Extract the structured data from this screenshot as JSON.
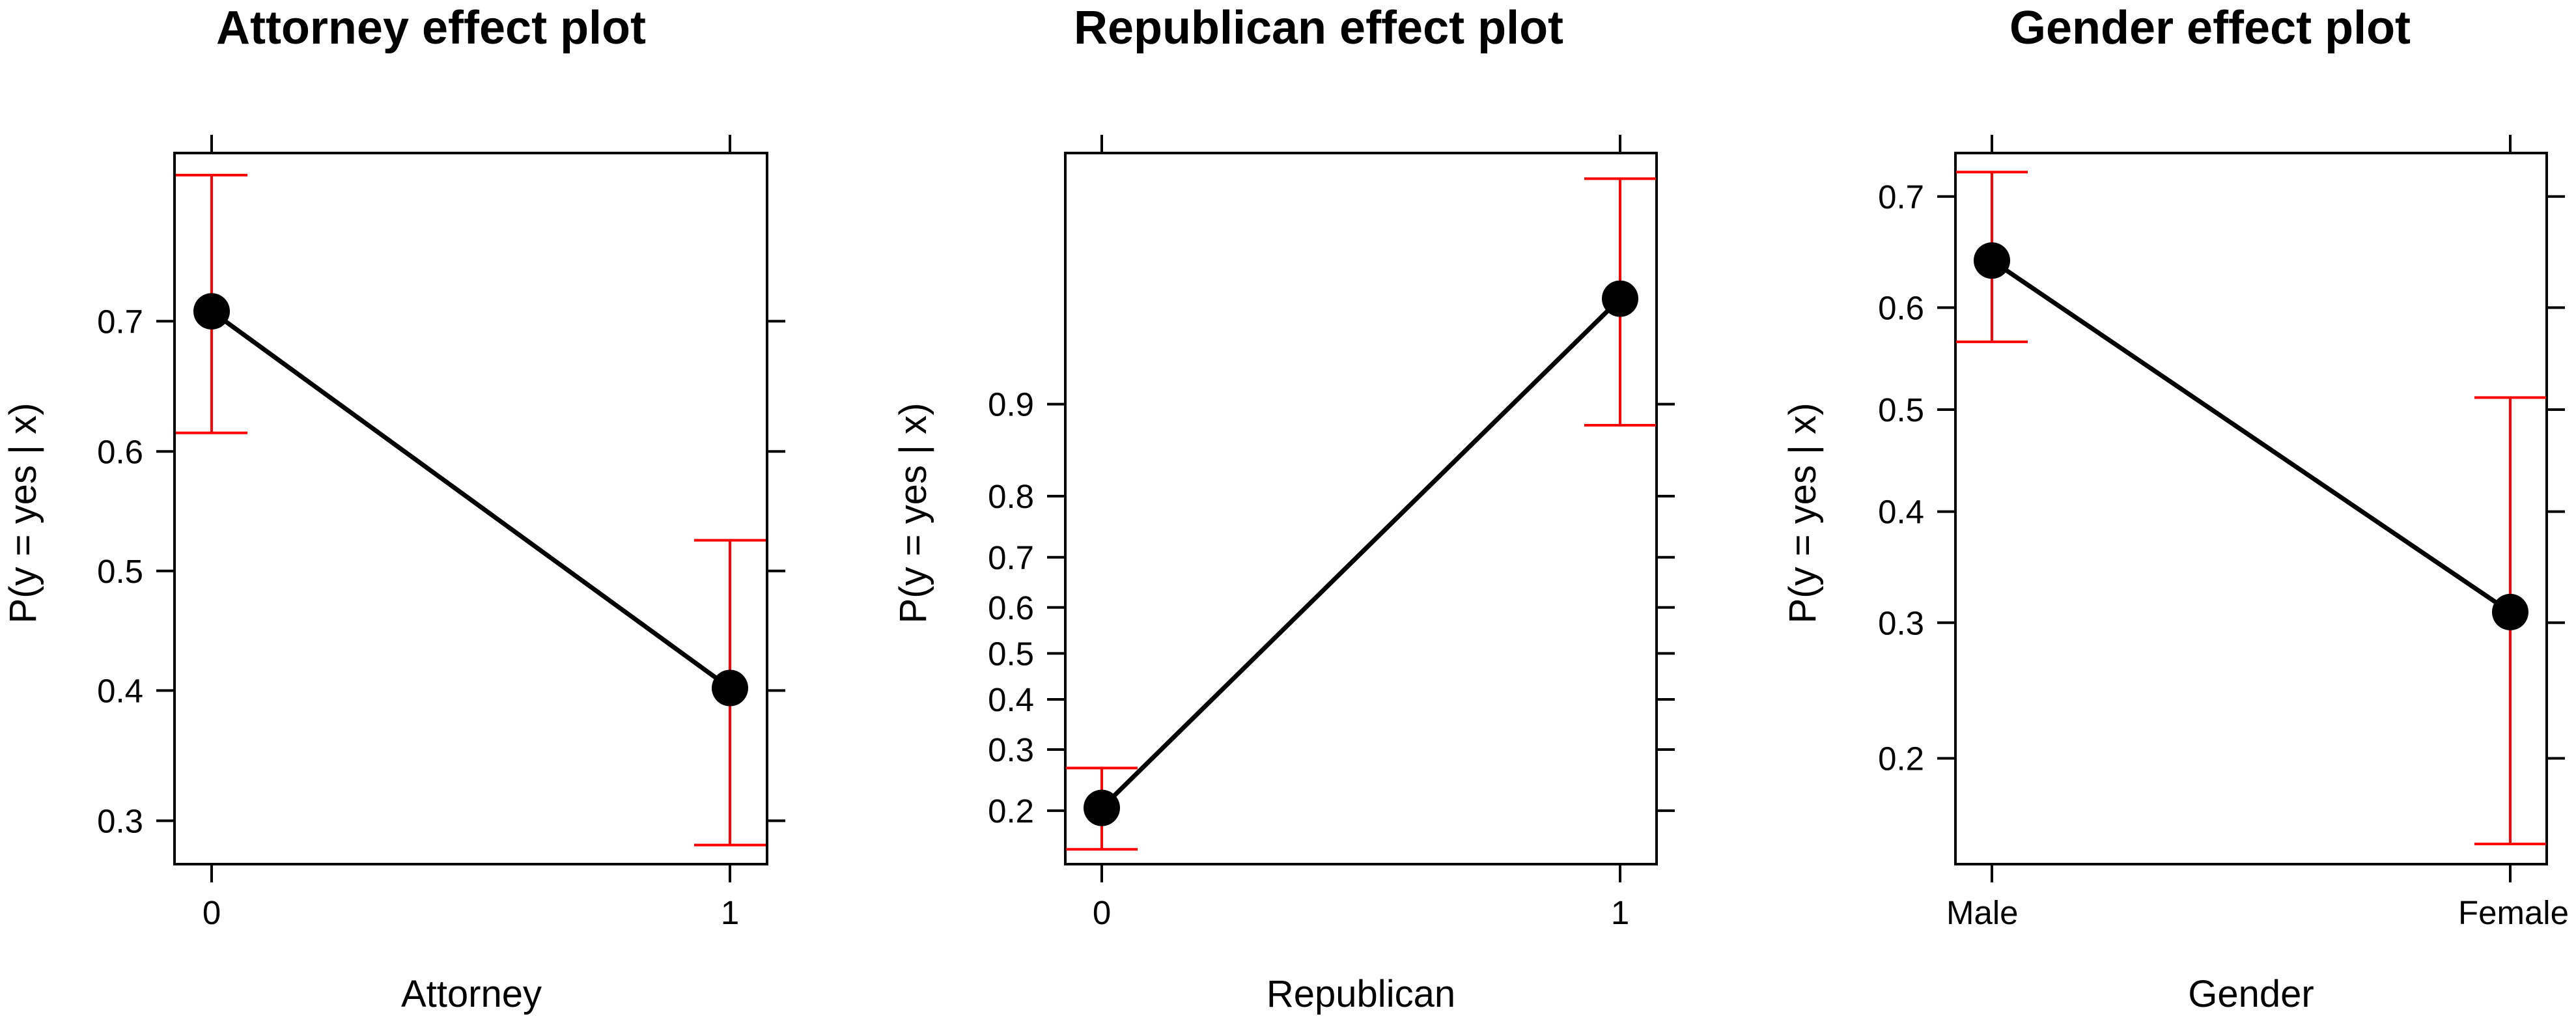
{
  "chart_data": [
    {
      "type": "line",
      "title": "Attorney effect plot",
      "xlabel": "Attorney",
      "ylabel": "P(y = yes | x)",
      "categories": [
        "0",
        "1"
      ],
      "values": [
        0.707,
        0.402
      ],
      "ci_lower": [
        0.615,
        0.283
      ],
      "ci_upper": [
        0.793,
        0.526
      ],
      "yticks": [
        0.3,
        0.4,
        0.5,
        0.6,
        0.7
      ],
      "ytick_labels": [
        "0.3",
        "0.4",
        "0.5",
        "0.6",
        "0.7"
      ],
      "yscale": "logit",
      "ylim": [
        0.27,
        0.805
      ],
      "grid": false,
      "point_color": "#000000",
      "line_color": "#000000",
      "ci_color": "#ff0000"
    },
    {
      "type": "line",
      "title": "Republican effect plot",
      "xlabel": "Republican",
      "ylabel": "P(y = yes | x)",
      "categories": [
        "0",
        "1"
      ],
      "values": [
        0.204,
        0.958
      ],
      "ci_lower": [
        0.151,
        0.882
      ],
      "ci_upper": [
        0.267,
        0.985
      ],
      "yticks": [
        0.2,
        0.3,
        0.4,
        0.5,
        0.6,
        0.7,
        0.8,
        0.9
      ],
      "ytick_labels": [
        "0.2",
        "0.3",
        "0.4",
        "0.5",
        "0.6",
        "0.7",
        "0.8",
        "0.9"
      ],
      "yscale": "logit",
      "ylim": [
        0.135,
        0.988
      ],
      "grid": false,
      "point_color": "#000000",
      "line_color": "#000000",
      "ci_color": "#ff0000"
    },
    {
      "type": "line",
      "title": "Gender effect plot",
      "xlabel": "Gender",
      "ylabel": "P(y = yes | x)",
      "categories": [
        "Male",
        "Female"
      ],
      "values": [
        0.644,
        0.309
      ],
      "ci_lower": [
        0.567,
        0.151
      ],
      "ci_upper": [
        0.72,
        0.512
      ],
      "yticks": [
        0.2,
        0.3,
        0.4,
        0.5,
        0.6,
        0.7
      ],
      "ytick_labels": [
        "0.2",
        "0.3",
        "0.4",
        "0.5",
        "0.6",
        "0.7"
      ],
      "yscale": "logit",
      "ylim": [
        0.141,
        0.735
      ],
      "grid": false,
      "point_color": "#000000",
      "line_color": "#000000",
      "ci_color": "#ff0000"
    }
  ]
}
